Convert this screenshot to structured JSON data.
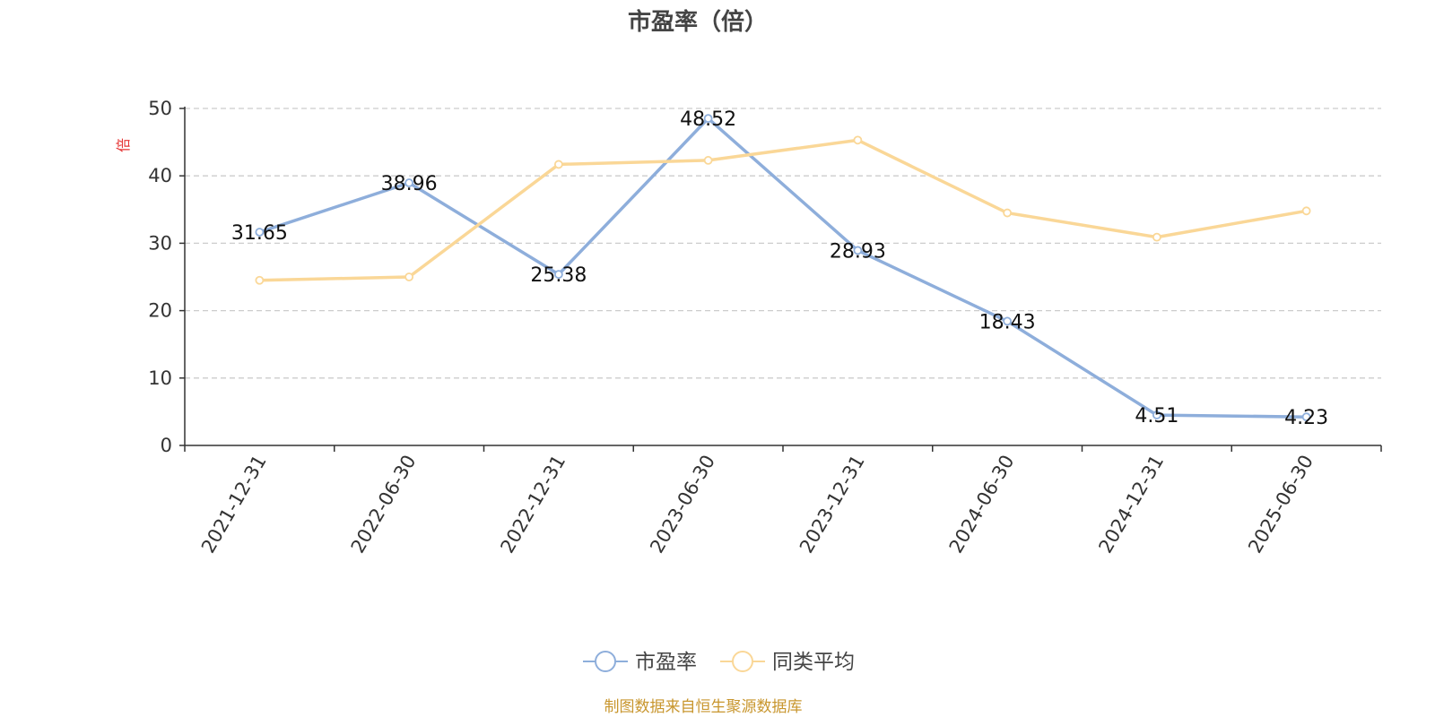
{
  "chart_data": {
    "type": "line",
    "title": "市盈率（倍）",
    "ylabel": "倍",
    "xlabel": "",
    "categories": [
      "2021-12-31",
      "2022-06-30",
      "2022-12-31",
      "2023-06-30",
      "2023-12-31",
      "2024-06-30",
      "2024-12-31",
      "2025-06-30"
    ],
    "ylim": [
      0,
      50
    ],
    "yticks": [
      0,
      10,
      20,
      30,
      40,
      50
    ],
    "grid": true,
    "legend_position": "bottom-center",
    "series": [
      {
        "name": "市盈率",
        "values": [
          31.65,
          38.96,
          25.38,
          48.52,
          28.93,
          18.43,
          4.51,
          4.23
        ],
        "labels": [
          "31.65",
          "38.96",
          "25.38",
          "48.52",
          "28.93",
          "18.43",
          "4.51",
          "4.23"
        ],
        "color": "#8eaedb"
      },
      {
        "name": "同类平均",
        "values": [
          24.5,
          25.0,
          41.7,
          42.3,
          45.3,
          34.5,
          30.9,
          34.8
        ],
        "color": "#fad797"
      }
    ]
  },
  "source": "制图数据来自恒生聚源数据库"
}
